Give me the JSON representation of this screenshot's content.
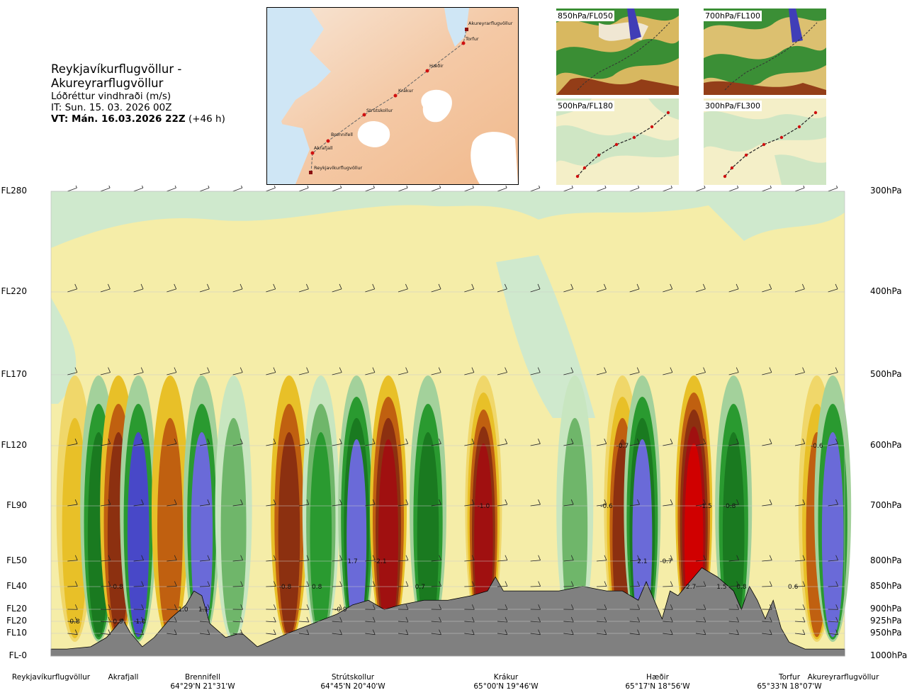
{
  "header": {
    "title": "Reykjavíkurflugvöllur - Akureyrarflugvöllur",
    "subtitle": "Lóðréttur vindhraði (m/s)",
    "it_line": "IT: Sun. 15. 03. 2026 00Z",
    "vt_bold": "VT: Mán. 16.03.2026 22Z",
    "vt_suffix": " (+46 h)"
  },
  "route_map": {
    "waypoints": [
      "Reykjavíkurflugvöllur",
      "Akrafjall",
      "Brennifell",
      "Strútskollur",
      "Krákur",
      "Hæðir",
      "Torfur",
      "Akureyrarflugvöllur"
    ]
  },
  "thumbnails": [
    {
      "label": "850hPa/FL050"
    },
    {
      "label": "700hPa/FL100"
    },
    {
      "label": "500hPa/FL180"
    },
    {
      "label": "300hPa/FL300"
    }
  ],
  "chart_data": {
    "type": "heatmap",
    "title": "Lóðréttur vindhraði (m/s)",
    "y_left_ticks": [
      "FL280",
      "FL220",
      "FL170",
      "FL120",
      "FL90",
      "FL50",
      "FL40",
      "FL20",
      "FL20",
      "FL10",
      "FL-0"
    ],
    "y_right_ticks": [
      "300hPa",
      "400hPa",
      "500hPa",
      "600hPa",
      "700hPa",
      "800hPa",
      "850hPa",
      "900hPa",
      "925hPa",
      "950hPa",
      "1000hPa"
    ],
    "pressure_levels": [
      300,
      400,
      500,
      600,
      700,
      800,
      850,
      900,
      925,
      950,
      1000
    ],
    "x_locations": [
      {
        "name": "Reykjavíkurflugvöllur",
        "coord": ""
      },
      {
        "name": "Akrafjall",
        "coord": ""
      },
      {
        "name": "Brennifell",
        "coord": "64°29'N 21°31'W"
      },
      {
        "name": "Strútskollur",
        "coord": "64°45'N 20°40'W"
      },
      {
        "name": "Krákur",
        "coord": "65°00'N 19°46'W"
      },
      {
        "name": "Hæðir",
        "coord": "65°17'N 18°56'W"
      },
      {
        "name": "Torfur",
        "coord": "65°33'N 18°07'W"
      },
      {
        "name": "Akureyrarflugvöllur",
        "coord": ""
      }
    ],
    "value_labels": [
      {
        "text": "0.8",
        "route_pos": 0.03,
        "hpa": 925
      },
      {
        "text": "-0.8",
        "route_pos": 0.083,
        "hpa": 850
      },
      {
        "text": "-0.9",
        "route_pos": 0.083,
        "hpa": 925
      },
      {
        "text": "1.0",
        "route_pos": 0.113,
        "hpa": 925
      },
      {
        "text": "-1.0",
        "route_pos": 0.165,
        "hpa": 900
      },
      {
        "text": "1.1",
        "route_pos": 0.192,
        "hpa": 900
      },
      {
        "text": "-0.8",
        "route_pos": 0.295,
        "hpa": 850
      },
      {
        "text": "0.8",
        "route_pos": 0.335,
        "hpa": 850
      },
      {
        "text": "-0.9",
        "route_pos": 0.365,
        "hpa": 900
      },
      {
        "text": "1.7",
        "route_pos": 0.38,
        "hpa": 800
      },
      {
        "text": "-2.1",
        "route_pos": 0.415,
        "hpa": 800
      },
      {
        "text": "0.7",
        "route_pos": 0.465,
        "hpa": 850
      },
      {
        "text": "-1.0",
        "route_pos": 0.545,
        "hpa": 700
      },
      {
        "text": "-0.7",
        "route_pos": 0.72,
        "hpa": 600
      },
      {
        "text": "-0.6",
        "route_pos": 0.7,
        "hpa": 700
      },
      {
        "text": "2.1",
        "route_pos": 0.745,
        "hpa": 800
      },
      {
        "text": "-0.7",
        "route_pos": 0.775,
        "hpa": 800
      },
      {
        "text": "-2.7",
        "route_pos": 0.805,
        "hpa": 850
      },
      {
        "text": "-1.5",
        "route_pos": 0.825,
        "hpa": 700
      },
      {
        "text": "-0.8",
        "route_pos": 0.855,
        "hpa": 700
      },
      {
        "text": "1.5",
        "route_pos": 0.845,
        "hpa": 850
      },
      {
        "text": "0.8",
        "route_pos": 0.87,
        "hpa": 850
      },
      {
        "text": "0.6",
        "route_pos": 0.935,
        "hpa": 850
      },
      {
        "text": "-0.6",
        "route_pos": 0.965,
        "hpa": 600
      }
    ],
    "colorscale": {
      "negative": [
        "#f5eda8",
        "#f0d76a",
        "#e8c028",
        "#e09a10",
        "#c06010",
        "#8c3010",
        "#a01010",
        "#d00000"
      ],
      "positive": [
        "#e8f5dd",
        "#c8e6c0",
        "#a3d19b",
        "#6fb66a",
        "#2a9a30",
        "#1a7a20",
        "#6a6ad8",
        "#4848c8"
      ]
    }
  }
}
